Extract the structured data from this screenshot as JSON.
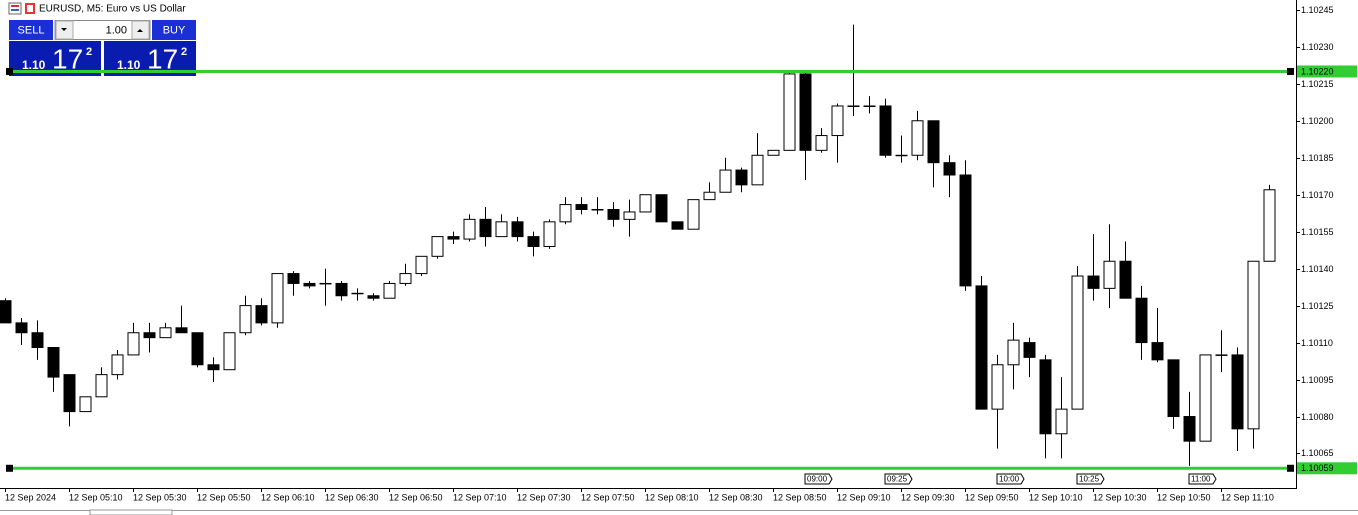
{
  "chart_data": {
    "type": "candlestick",
    "title": "EURUSD, M5:  Euro vs US Dollar",
    "categories": [
      "12 Sep 2024",
      null,
      null,
      null,
      "12 Sep 05:10",
      null,
      null,
      null,
      "12 Sep 05:30",
      null,
      null,
      null,
      "12 Sep 05:50",
      null,
      null,
      null,
      "12 Sep 06:10",
      null,
      null,
      null,
      "12 Sep 06:30",
      null,
      null,
      null,
      "12 Sep 06:50",
      null,
      null,
      null,
      "12 Sep 07:10",
      null,
      null,
      null,
      "12 Sep 07:30",
      null,
      null,
      null,
      "12 Sep 07:50",
      null,
      null,
      null,
      "12 Sep 08:10",
      null,
      null,
      null,
      "12 Sep 08:30",
      null,
      null,
      null,
      "12 Sep 08:50",
      null,
      null,
      null,
      "12 Sep 09:10",
      null,
      null,
      null,
      "12 Sep 09:30",
      null,
      null,
      null,
      "12 Sep 09:50",
      null,
      null,
      null,
      "12 Sep 10:10",
      null,
      null,
      null,
      "12 Sep 10:30",
      null,
      null,
      null,
      "12 Sep 10:50",
      null,
      null,
      null,
      "12 Sep 11:10",
      null,
      null,
      null
    ],
    "open": [
      1.10127,
      1.10118,
      1.10114,
      1.10108,
      1.10097,
      1.10082,
      1.10088,
      1.10097,
      1.10105,
      1.10114,
      1.10112,
      1.10116,
      1.10114,
      1.10101,
      1.10099,
      1.10114,
      1.10125,
      1.10118,
      1.10138,
      1.10134,
      1.10134,
      1.10134,
      1.1013,
      1.10129,
      1.10128,
      1.10134,
      1.10138,
      1.10145,
      1.10153,
      1.10152,
      1.1016,
      1.10153,
      1.10159,
      1.10153,
      1.10149,
      1.10159,
      1.10166,
      1.10164,
      1.10164,
      1.1016,
      1.10163,
      1.1017,
      1.10159,
      1.10156,
      1.10168,
      1.10171,
      1.1018,
      1.10174,
      1.10186,
      1.10188,
      1.10219,
      1.10188,
      1.10194,
      1.10206,
      1.10206,
      1.10206,
      1.10186,
      1.10186,
      1.102,
      1.10183,
      1.10178,
      1.10133,
      1.10083,
      1.10101,
      1.1011,
      1.10103,
      1.10073,
      1.10083,
      1.10137,
      1.10132,
      1.10143,
      1.10128,
      1.1011,
      1.10103,
      1.1008,
      1.1007,
      1.10105,
      1.10105,
      1.10075,
      1.10143
    ],
    "high": [
      1.10128,
      1.1012,
      1.10119,
      1.10108,
      1.10097,
      1.10088,
      1.101,
      1.10107,
      1.10118,
      1.10118,
      1.10118,
      1.10125,
      1.10114,
      1.10104,
      1.10114,
      1.10129,
      1.10128,
      1.10138,
      1.10139,
      1.10135,
      1.1014,
      1.10135,
      1.10132,
      1.1013,
      1.10135,
      1.10142,
      1.10145,
      1.10153,
      1.10155,
      1.10162,
      1.10165,
      1.10162,
      1.10161,
      1.10155,
      1.1016,
      1.10169,
      1.10169,
      1.10169,
      1.10167,
      1.10168,
      1.1017,
      1.1017,
      1.10159,
      1.10168,
      1.10175,
      1.10185,
      1.10181,
      1.10195,
      1.10188,
      1.1022,
      1.1022,
      1.10197,
      1.10207,
      1.10239,
      1.1021,
      1.10209,
      1.10194,
      1.10204,
      1.102,
      1.10186,
      1.10184,
      1.10137,
      1.10105,
      1.10118,
      1.10112,
      1.10105,
      1.10096,
      1.10141,
      1.10154,
      1.10158,
      1.10151,
      1.10133,
      1.10124,
      1.10103,
      1.1009,
      1.10105,
      1.10115,
      1.10108,
      1.10143,
      1.10174
    ],
    "low": [
      1.10118,
      1.10109,
      1.10103,
      1.1009,
      1.10076,
      1.10082,
      1.10088,
      1.10095,
      1.10105,
      1.10106,
      1.10112,
      1.10114,
      1.101,
      1.10094,
      1.10099,
      1.10113,
      1.10117,
      1.10116,
      1.10129,
      1.10132,
      1.10125,
      1.10127,
      1.10127,
      1.10127,
      1.10128,
      1.10133,
      1.10137,
      1.10144,
      1.1015,
      1.10151,
      1.10149,
      1.10153,
      1.10151,
      1.10145,
      1.10148,
      1.10158,
      1.10162,
      1.10162,
      1.10157,
      1.10153,
      1.10163,
      1.10159,
      1.10156,
      1.10156,
      1.10168,
      1.10171,
      1.10171,
      1.10174,
      1.10186,
      1.10188,
      1.10176,
      1.10187,
      1.10183,
      1.10202,
      1.10203,
      1.10185,
      1.10183,
      1.10184,
      1.10173,
      1.10169,
      1.10131,
      1.10083,
      1.10067,
      1.10091,
      1.10096,
      1.10063,
      1.10063,
      1.10083,
      1.10127,
      1.10124,
      1.10128,
      1.10103,
      1.10102,
      1.10075,
      1.1006,
      1.1007,
      1.10098,
      1.10066,
      1.10067,
      1.10143
    ],
    "close": [
      1.10118,
      1.10114,
      1.10108,
      1.10096,
      1.10082,
      1.10088,
      1.10097,
      1.10105,
      1.10114,
      1.10112,
      1.10116,
      1.10114,
      1.10101,
      1.10099,
      1.10114,
      1.10125,
      1.10118,
      1.10138,
      1.10134,
      1.10133,
      1.10134,
      1.10129,
      1.1013,
      1.10128,
      1.10134,
      1.10138,
      1.10145,
      1.10153,
      1.10152,
      1.1016,
      1.10153,
      1.10159,
      1.10153,
      1.10149,
      1.10159,
      1.10166,
      1.10164,
      1.10164,
      1.1016,
      1.10163,
      1.1017,
      1.10159,
      1.10156,
      1.10168,
      1.10171,
      1.1018,
      1.10174,
      1.10186,
      1.10188,
      1.10219,
      1.10188,
      1.10194,
      1.10206,
      1.10206,
      1.10206,
      1.10186,
      1.10186,
      1.102,
      1.10183,
      1.10178,
      1.10133,
      1.10083,
      1.10101,
      1.10111,
      1.10104,
      1.10073,
      1.10083,
      1.10137,
      1.10132,
      1.10143,
      1.10128,
      1.1011,
      1.10103,
      1.1008,
      1.1007,
      1.10105,
      1.10105,
      1.10075,
      1.10143,
      1.10172
    ],
    "ylim": [
      1.10051,
      1.10249
    ],
    "yticks": [
      1.10245,
      {
        "value": 1.1023,
        "label": "1.10230"
      },
      1.10215,
      {
        "value": 1.102,
        "label": "1.10200"
      },
      1.10185,
      {
        "value": 1.1017,
        "label": "1.10170"
      },
      1.10155,
      {
        "value": 1.1014,
        "label": "1.10140"
      },
      1.10125,
      {
        "value": 1.1011,
        "label": "1.10110"
      },
      1.10095,
      {
        "value": 1.1008,
        "label": "1.10080"
      },
      1.10065
    ],
    "up_color": "#ffffff",
    "down_color": "#000000",
    "hlines": [
      {
        "value": 1.1022,
        "label": "1.10220"
      },
      {
        "value": 1.10059,
        "label": "1.10059"
      }
    ],
    "hline_color": "#32cd32",
    "time_markers": [
      "09:00",
      "09:25",
      "10:00",
      "10:25",
      "11:00"
    ]
  },
  "trade_panel": {
    "sell": "SELL",
    "buy": "BUY",
    "lots": "1.00",
    "sell_price": {
      "big_figure": "1.10",
      "pips": "17",
      "fraction": "2"
    },
    "buy_price": {
      "big_figure": "1.10",
      "pips": "17",
      "fraction": "2"
    }
  }
}
